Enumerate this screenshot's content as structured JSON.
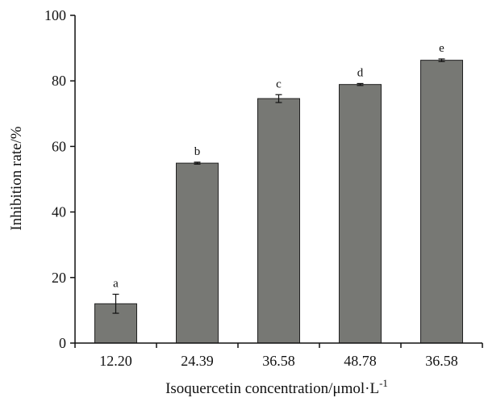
{
  "chart_data": {
    "type": "bar",
    "categories": [
      "12.20",
      "24.39",
      "36.58",
      "48.78",
      "36.58"
    ],
    "values": [
      12.0,
      54.9,
      74.6,
      78.9,
      86.3
    ],
    "errors": [
      2.9,
      0.3,
      1.2,
      0.3,
      0.4
    ],
    "significance": [
      "a",
      "b",
      "c",
      "d",
      "e"
    ],
    "xlabel": "Isoquercetin concentration/μmol·L",
    "xlabel_superscript": "-1",
    "ylabel": "Inhibition rate/%",
    "ylim": [
      0,
      100
    ],
    "yticks": [
      "0",
      "20",
      "40",
      "60",
      "80",
      "100"
    ],
    "grid": false,
    "legend": "none",
    "colors": {
      "bar": "#777874",
      "axis": "#111111"
    }
  }
}
